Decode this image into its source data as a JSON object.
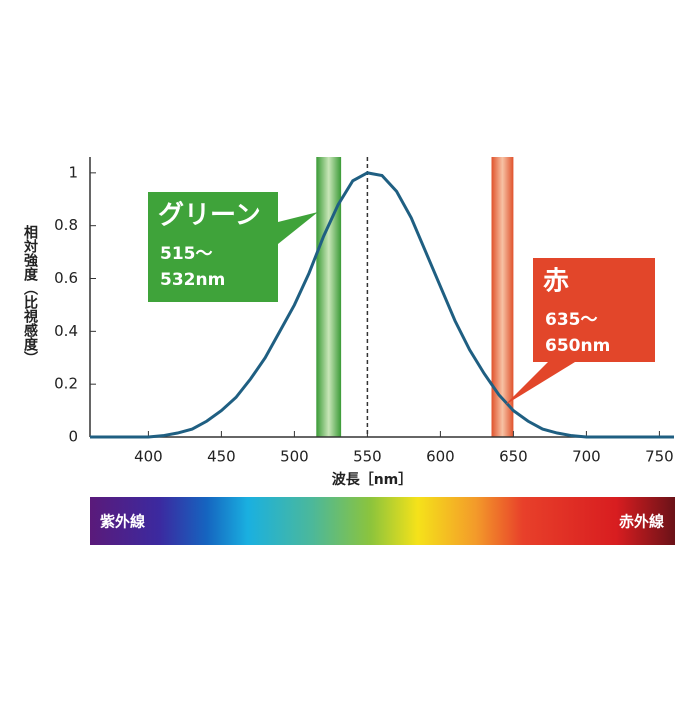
{
  "chart_data": {
    "type": "line",
    "x_label": "波長［nm］",
    "y_label": "相対強度（比視感度）",
    "x": [
      360,
      370,
      380,
      390,
      400,
      410,
      420,
      430,
      440,
      450,
      460,
      470,
      480,
      490,
      500,
      510,
      520,
      530,
      540,
      550,
      560,
      570,
      580,
      590,
      600,
      610,
      620,
      630,
      640,
      650,
      660,
      670,
      680,
      690,
      700,
      710,
      720,
      730,
      740,
      750,
      760
    ],
    "values": [
      0,
      0,
      0,
      0,
      0,
      0.005,
      0.015,
      0.03,
      0.06,
      0.1,
      0.15,
      0.22,
      0.3,
      0.4,
      0.5,
      0.62,
      0.76,
      0.88,
      0.97,
      1.0,
      0.99,
      0.93,
      0.83,
      0.7,
      0.57,
      0.44,
      0.33,
      0.24,
      0.16,
      0.1,
      0.06,
      0.03,
      0.015,
      0.005,
      0,
      0,
      0,
      0,
      0,
      0,
      0
    ],
    "color": "#1f5f82",
    "xlim": [
      360,
      760
    ],
    "ylim": [
      0,
      1.06
    ],
    "xticks": [
      400,
      450,
      500,
      550,
      600,
      650,
      700,
      750
    ],
    "yticks": [
      0,
      0.2,
      0.4,
      0.6,
      0.8,
      1
    ],
    "peak_line": 550,
    "bands": [
      {
        "range": [
          515,
          532
        ],
        "color": "#3fa33a",
        "title": "グリーン",
        "line1": "515～",
        "line2": "532nm"
      },
      {
        "range": [
          635,
          650
        ],
        "color": "#e2462a",
        "title": "赤",
        "line1": "635～",
        "line2": "650nm"
      }
    ],
    "spectrum": {
      "left_label": "紫外線",
      "right_label": "赤外線"
    }
  }
}
